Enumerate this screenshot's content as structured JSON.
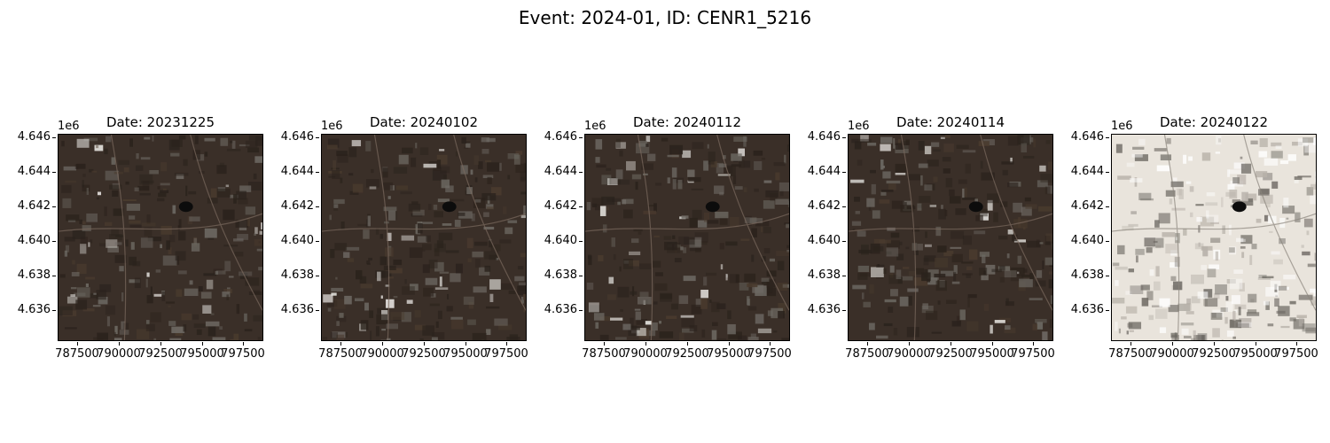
{
  "figure": {
    "title": "Event: 2024-01, ID: CENR1_5216"
  },
  "axes": {
    "y_offset_label": "1e6",
    "y_ticks": [
      "4.646",
      "4.644",
      "4.642",
      "4.640",
      "4.638",
      "4.636"
    ],
    "x_ticks": [
      "787500",
      "790000",
      "792500",
      "795000",
      "797500"
    ]
  },
  "panels": [
    {
      "title": "Date: 20231225",
      "scene": "dark"
    },
    {
      "title": "Date: 20240102",
      "scene": "dark"
    },
    {
      "title": "Date: 20240112",
      "scene": "dark"
    },
    {
      "title": "Date: 20240114",
      "scene": "dark"
    },
    {
      "title": "Date: 20240122",
      "scene": "snow"
    }
  ],
  "colors": {
    "dark_base": "#3a2f28",
    "dark_patch": "#2a221c",
    "urban": "#6e6a64",
    "snow_base": "#e9e4dc",
    "snow_patch": "#6a6660"
  }
}
